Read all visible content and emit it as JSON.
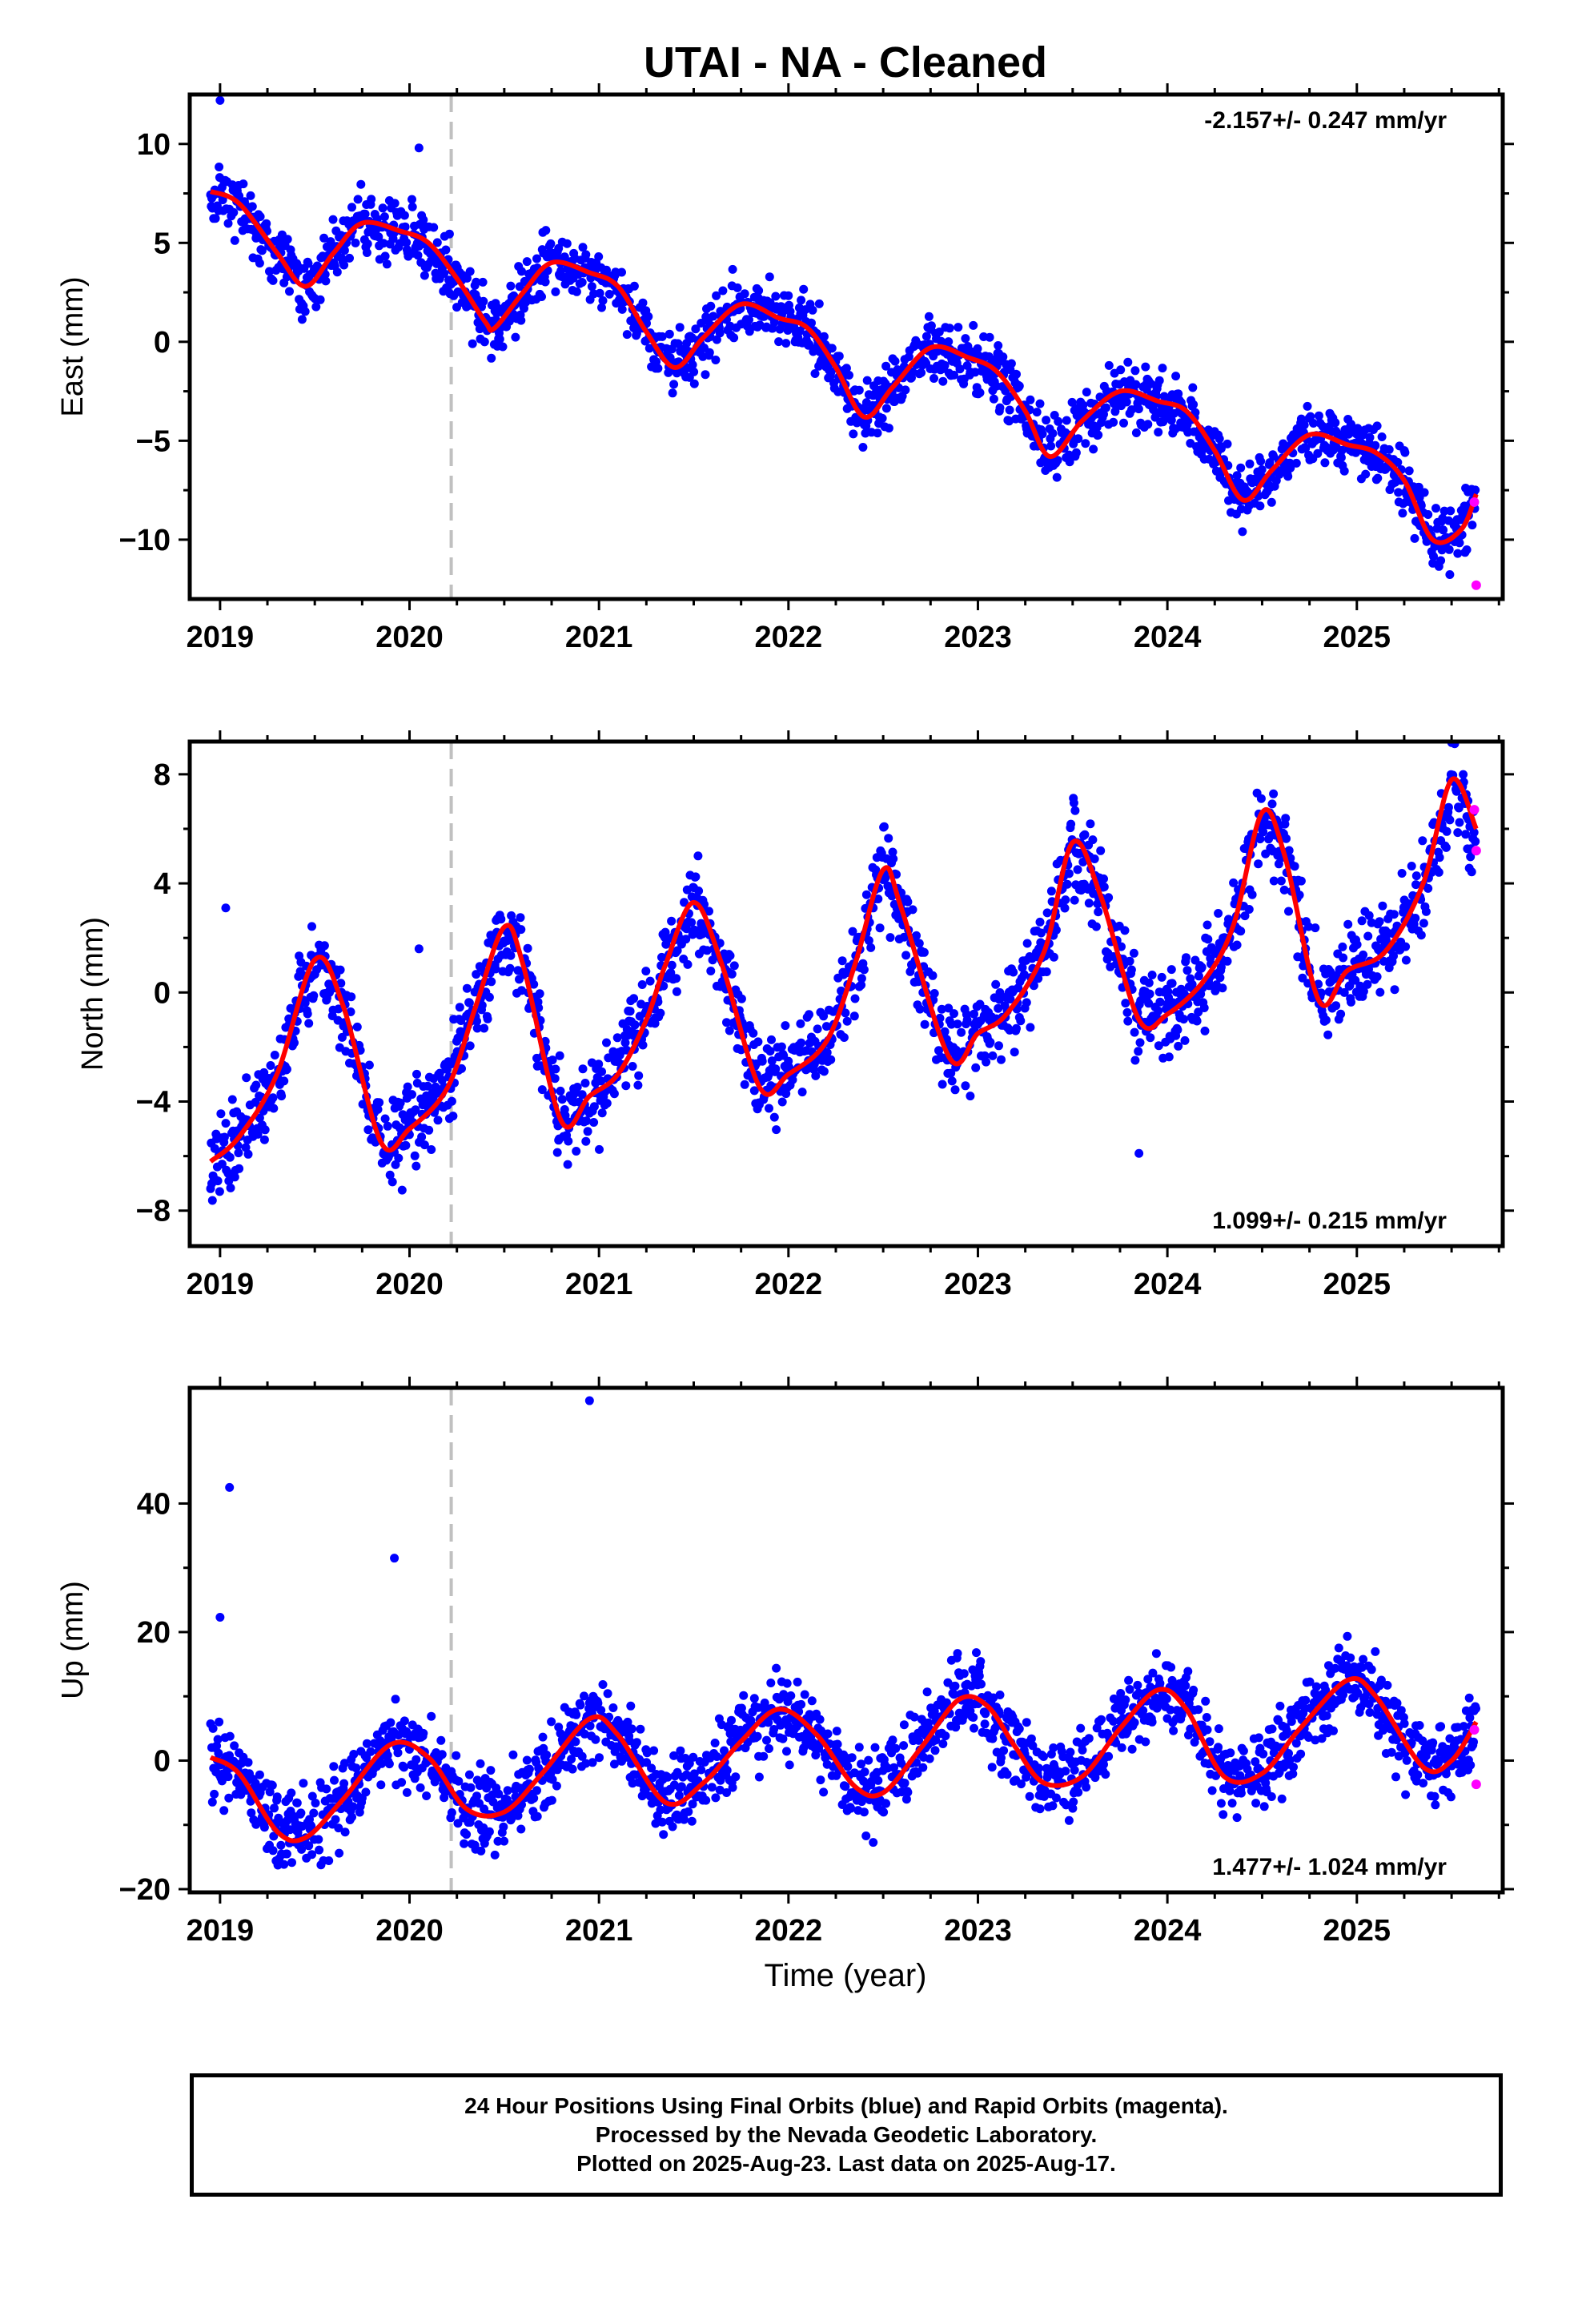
{
  "title": "UTAI  - NA - Cleaned",
  "xlabel": "Time (year)",
  "footer": [
    "24 Hour Positions Using Final Orbits (blue) and Rapid Orbits (magenta).",
    "Processed by the Nevada Geodetic Laboratory.",
    "Plotted on 2025-Aug-23. Last data on 2025-Aug-17."
  ],
  "colors": {
    "final": "#0000ff",
    "rapid": "#ff00ff",
    "model": "#ff0000",
    "event": "#c0c0c0"
  },
  "chart_data": [
    {
      "type": "scatter",
      "ylabel": "East (mm)",
      "rate": "-2.157+/- 0.247 mm/yr",
      "xlim": [
        2018.84,
        2025.77
      ],
      "ylim": [
        -13,
        12.5
      ],
      "yticks": [
        -10,
        -5,
        0,
        5,
        10
      ],
      "xticks": [
        2019,
        2020,
        2021,
        2022,
        2023,
        2024,
        2025
      ],
      "event_lines": [
        2020.22
      ],
      "model": {
        "x": [
          2018.95,
          2019.1,
          2019.3,
          2019.45,
          2019.6,
          2019.75,
          2019.95,
          2020.1,
          2020.25,
          2020.4,
          2020.45,
          2020.6,
          2020.75,
          2020.95,
          2021.1,
          2021.25,
          2021.4,
          2021.55,
          2021.75,
          2021.95,
          2022.1,
          2022.25,
          2022.4,
          2022.55,
          2022.75,
          2022.95,
          2023.1,
          2023.25,
          2023.38,
          2023.55,
          2023.75,
          2023.95,
          2024.1,
          2024.25,
          2024.4,
          2024.55,
          2024.75,
          2024.95,
          2025.1,
          2025.25,
          2025.4,
          2025.55,
          2025.63
        ],
        "y": [
          7.6,
          7.0,
          4.5,
          2.8,
          4.5,
          6.0,
          5.6,
          5.0,
          3.2,
          1.0,
          0.7,
          2.5,
          4.0,
          3.5,
          2.8,
          0.5,
          -1.3,
          0.2,
          1.9,
          1.2,
          0.7,
          -1.3,
          -3.8,
          -2.3,
          -0.3,
          -0.8,
          -1.5,
          -3.5,
          -5.8,
          -4.0,
          -2.5,
          -3.0,
          -3.5,
          -5.5,
          -8.0,
          -6.5,
          -4.7,
          -5.2,
          -5.6,
          -7.0,
          -10.0,
          -9.5,
          -7.7
        ]
      },
      "final_amp": 0.75,
      "rapid": {
        "x": [
          2025.62,
          2025.63
        ],
        "y": [
          -8.1,
          -12.3
        ]
      },
      "outliers": {
        "x": [
          2019.0,
          2020.05
        ],
        "y": [
          12.2,
          9.8
        ]
      }
    },
    {
      "type": "scatter",
      "ylabel": "North (mm)",
      "rate": "1.099+/- 0.215 mm/yr",
      "xlim": [
        2018.84,
        2025.77
      ],
      "ylim": [
        -9.3,
        9.2
      ],
      "yticks": [
        -8,
        -4,
        0,
        4,
        8
      ],
      "xticks": [
        2019,
        2020,
        2021,
        2022,
        2023,
        2024,
        2025
      ],
      "event_lines": [
        2020.22
      ],
      "model": {
        "x": [
          2018.95,
          2019.1,
          2019.3,
          2019.5,
          2019.65,
          2019.85,
          2020.0,
          2020.2,
          2020.35,
          2020.5,
          2020.6,
          2020.8,
          2020.95,
          2021.1,
          2021.25,
          2021.35,
          2021.5,
          2021.65,
          2021.85,
          2022.0,
          2022.2,
          2022.35,
          2022.5,
          2022.6,
          2022.85,
          2023.0,
          2023.15,
          2023.35,
          2023.5,
          2023.65,
          2023.85,
          2024.0,
          2024.2,
          2024.35,
          2024.5,
          2024.62,
          2024.8,
          2024.95,
          2025.15,
          2025.35,
          2025.5,
          2025.63
        ],
        "y": [
          -6.2,
          -5.3,
          -3.0,
          1.2,
          -0.5,
          -5.5,
          -5.0,
          -3.5,
          -0.5,
          2.4,
          1.0,
          -4.7,
          -3.8,
          -3.0,
          -1.0,
          1.0,
          3.3,
          1.0,
          -3.5,
          -3.0,
          -1.8,
          1.0,
          4.5,
          3.0,
          -2.4,
          -1.5,
          -0.8,
          1.5,
          5.5,
          3.5,
          -1.0,
          -0.8,
          0.5,
          2.5,
          6.6,
          5.0,
          -0.3,
          0.8,
          1.5,
          4.0,
          7.8,
          6.0
        ]
      },
      "final_amp": 0.8,
      "rapid": {
        "x": [
          2025.62,
          2025.63
        ],
        "y": [
          6.7,
          5.2
        ]
      },
      "outliers": {
        "x": [
          2019.03,
          2020.05,
          2023.85
        ],
        "y": [
          3.1,
          1.6,
          -5.9
        ]
      }
    },
    {
      "type": "scatter",
      "ylabel": "Up (mm)",
      "rate": "1.477+/- 1.024 mm/yr",
      "xlim": [
        2018.84,
        2025.77
      ],
      "ylim": [
        -20.5,
        58
      ],
      "yticks": [
        -20,
        0,
        20,
        40
      ],
      "xticks": [
        2019,
        2020,
        2021,
        2022,
        2023,
        2024,
        2025
      ],
      "event_lines": [
        2020.22
      ],
      "model": {
        "x": [
          2018.95,
          2019.1,
          2019.3,
          2019.45,
          2019.65,
          2019.9,
          2020.1,
          2020.3,
          2020.5,
          2020.7,
          2020.95,
          2021.1,
          2021.35,
          2021.55,
          2021.75,
          2021.95,
          2022.15,
          2022.35,
          2022.5,
          2022.7,
          2022.9,
          2023.05,
          2023.2,
          2023.35,
          2023.55,
          2023.75,
          2023.95,
          2024.1,
          2024.3,
          2024.5,
          2024.7,
          2024.95,
          2025.1,
          2025.35,
          2025.5,
          2025.63
        ],
        "y": [
          0.5,
          -2.0,
          -11.0,
          -12.0,
          -6.0,
          2.5,
          0.5,
          -7.5,
          -8.0,
          -2.0,
          6.5,
          4.0,
          -6.5,
          -3.5,
          3.0,
          8.0,
          4.0,
          -4.0,
          -5.0,
          2.0,
          9.5,
          8.5,
          2.0,
          -3.5,
          -2.5,
          5.0,
          11.0,
          8.0,
          -2.5,
          -2.0,
          5.0,
          12.5,
          10.0,
          -1.0,
          0.0,
          6.0
        ]
      },
      "final_amp": 3.0,
      "rapid": {
        "x": [
          2025.62,
          2025.63
        ],
        "y": [
          4.8,
          -3.7
        ]
      },
      "outliers": {
        "x": [
          2019.0,
          2019.05,
          2019.92,
          2020.95
        ],
        "y": [
          22.3,
          42.5,
          31.5,
          56.0
        ]
      }
    }
  ]
}
